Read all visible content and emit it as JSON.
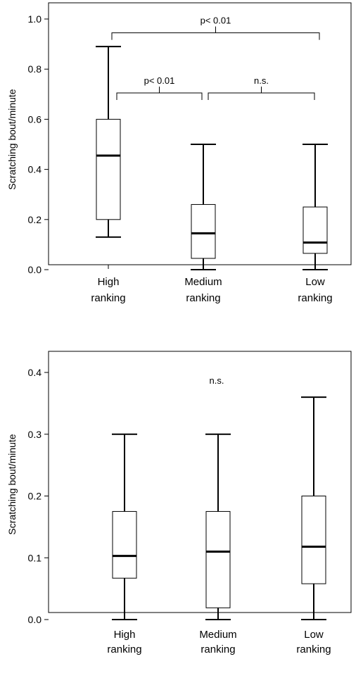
{
  "chart_data": [
    {
      "type": "box",
      "ylabel": "Scratching bout/minute",
      "ylim": [
        0,
        1.0
      ],
      "yticks": [
        "0.0",
        "0.2",
        "0.4",
        "0.6",
        "0.8",
        "1.0"
      ],
      "categories": [
        [
          "High",
          "ranking"
        ],
        [
          "Medium",
          "ranking"
        ],
        [
          "Low",
          "ranking"
        ]
      ],
      "boxes": [
        {
          "min": 0.13,
          "q1": 0.2,
          "median": 0.455,
          "q3": 0.6,
          "max": 0.89
        },
        {
          "min": 0.0,
          "q1": 0.045,
          "median": 0.145,
          "q3": 0.26,
          "max": 0.5
        },
        {
          "min": 0.0,
          "q1": 0.065,
          "median": 0.108,
          "q3": 0.25,
          "max": 0.5
        }
      ],
      "annotations": [
        {
          "label": "p< 0.01",
          "from": 0,
          "to": 1,
          "y": 0.705
        },
        {
          "label": "n.s.",
          "from": 1,
          "to": 2,
          "y": 0.705
        },
        {
          "label": "p< 0.01",
          "from": 0,
          "to": 2,
          "y": 0.945
        }
      ]
    },
    {
      "type": "box",
      "ylabel": "Scratching bout/minute",
      "ylim": [
        0,
        0.4
      ],
      "yticks": [
        "0.0",
        "0.1",
        "0.2",
        "0.3",
        "0.4"
      ],
      "categories": [
        [
          "High",
          "ranking"
        ],
        [
          "Medium",
          "ranking"
        ],
        [
          "Low",
          "ranking"
        ]
      ],
      "boxes": [
        {
          "min": 0.0,
          "q1": 0.067,
          "median": 0.103,
          "q3": 0.175,
          "max": 0.3
        },
        {
          "min": 0.0,
          "q1": 0.019,
          "median": 0.11,
          "q3": 0.175,
          "max": 0.3
        },
        {
          "min": 0.0,
          "q1": 0.058,
          "median": 0.118,
          "q3": 0.2,
          "max": 0.36
        }
      ],
      "annotations": [
        {
          "label": "n.s."
        }
      ]
    }
  ]
}
